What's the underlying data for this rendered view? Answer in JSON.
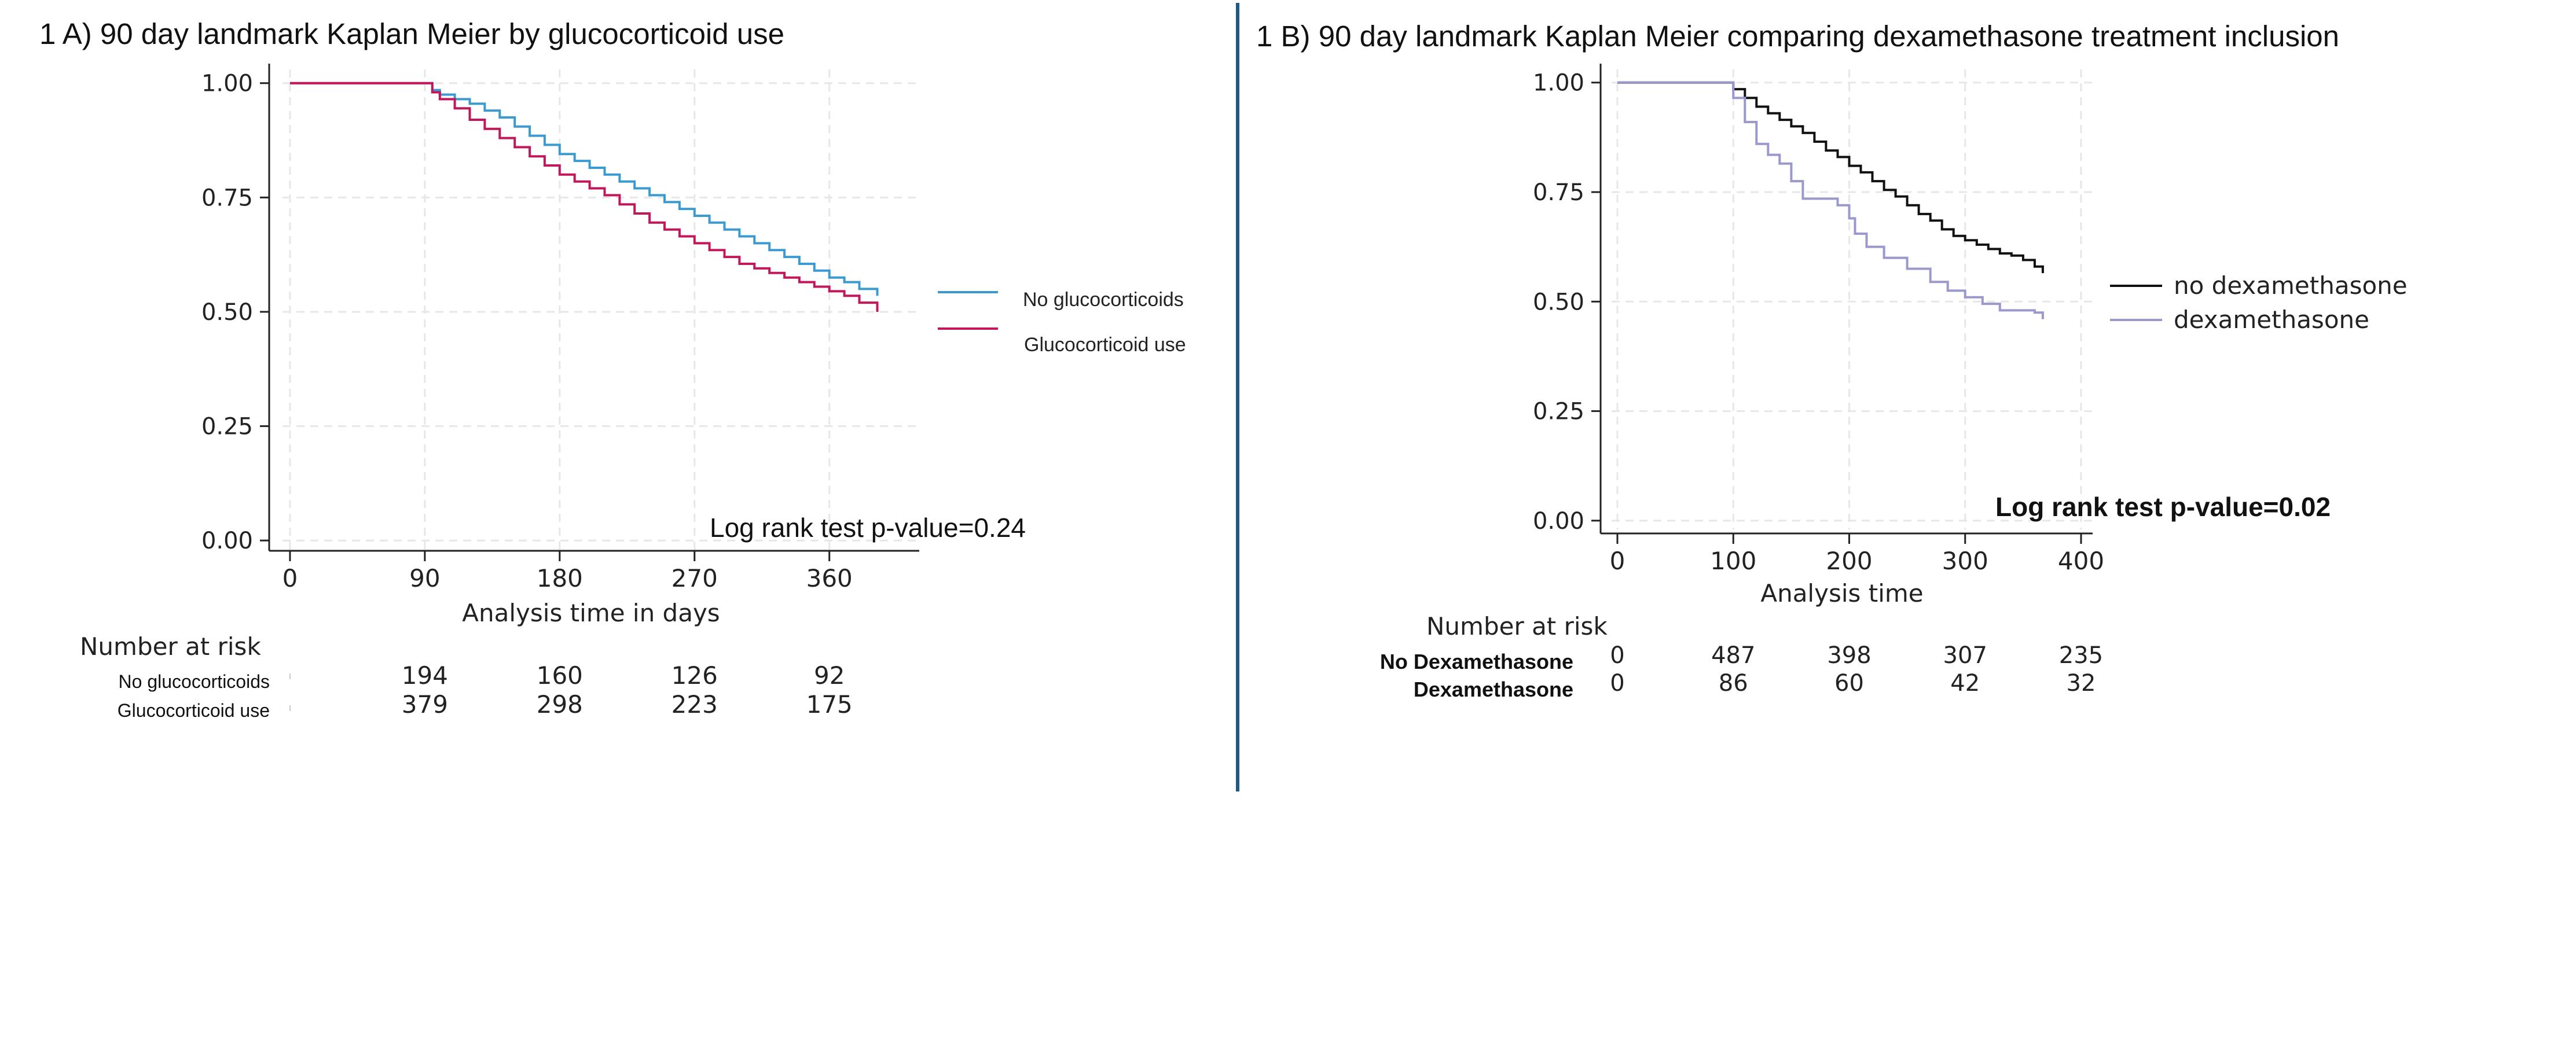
{
  "colors": {
    "divider": "#1f5a82",
    "grid": "#e7e7e7",
    "axis": "#222222",
    "A_no": "#3b9bd1",
    "A_glu": "#c2185b",
    "B_no": "#111111",
    "B_dex": "#9a98cc"
  },
  "chart_data": [
    {
      "type": "line",
      "title": "1 A) 90 day landmark Kaplan Meier by glucocorticoid use",
      "xlabel": "Analysis time in days",
      "ylabel": "",
      "xlim": [
        -5,
        420
      ],
      "ylim": [
        -0.02,
        1.03
      ],
      "xticks": [
        "0",
        "90",
        "180",
        "270",
        "360"
      ],
      "xtick_values": [
        0,
        90,
        180,
        270,
        360
      ],
      "yticks": [
        "0.00",
        "0.25",
        "0.50",
        "0.75",
        "1.00"
      ],
      "ytick_values": [
        0,
        0.25,
        0.5,
        0.75,
        1.0
      ],
      "grid": true,
      "legend_position": "right",
      "annotation": "Log rank test p-value=0.24",
      "series": [
        {
          "name": "No glucocorticoids",
          "color_key": "A_no",
          "points": [
            [
              0,
              1
            ],
            [
              90,
              1
            ],
            [
              95,
              0.985
            ],
            [
              100,
              0.975
            ],
            [
              110,
              0.965
            ],
            [
              120,
              0.955
            ],
            [
              130,
              0.94
            ],
            [
              140,
              0.925
            ],
            [
              150,
              0.905
            ],
            [
              160,
              0.885
            ],
            [
              170,
              0.865
            ],
            [
              180,
              0.845
            ],
            [
              190,
              0.83
            ],
            [
              200,
              0.815
            ],
            [
              210,
              0.8
            ],
            [
              220,
              0.785
            ],
            [
              230,
              0.77
            ],
            [
              240,
              0.755
            ],
            [
              250,
              0.74
            ],
            [
              260,
              0.725
            ],
            [
              270,
              0.71
            ],
            [
              280,
              0.695
            ],
            [
              290,
              0.68
            ],
            [
              300,
              0.665
            ],
            [
              310,
              0.65
            ],
            [
              320,
              0.635
            ],
            [
              330,
              0.62
            ],
            [
              340,
              0.605
            ],
            [
              350,
              0.59
            ],
            [
              360,
              0.575
            ],
            [
              370,
              0.565
            ],
            [
              380,
              0.55
            ],
            [
              392,
              0.535
            ]
          ]
        },
        {
          "name": "Glucocorticoid use",
          "color_key": "A_glu",
          "points": [
            [
              0,
              1
            ],
            [
              90,
              1
            ],
            [
              95,
              0.98
            ],
            [
              100,
              0.965
            ],
            [
              110,
              0.945
            ],
            [
              120,
              0.92
            ],
            [
              130,
              0.9
            ],
            [
              140,
              0.88
            ],
            [
              150,
              0.86
            ],
            [
              160,
              0.84
            ],
            [
              170,
              0.82
            ],
            [
              180,
              0.8
            ],
            [
              190,
              0.785
            ],
            [
              200,
              0.77
            ],
            [
              210,
              0.755
            ],
            [
              220,
              0.735
            ],
            [
              230,
              0.715
            ],
            [
              240,
              0.695
            ],
            [
              250,
              0.68
            ],
            [
              260,
              0.665
            ],
            [
              270,
              0.65
            ],
            [
              280,
              0.635
            ],
            [
              290,
              0.62
            ],
            [
              300,
              0.605
            ],
            [
              310,
              0.595
            ],
            [
              320,
              0.585
            ],
            [
              330,
              0.575
            ],
            [
              340,
              0.565
            ],
            [
              350,
              0.555
            ],
            [
              360,
              0.545
            ],
            [
              370,
              0.535
            ],
            [
              380,
              0.52
            ],
            [
              392,
              0.5
            ]
          ]
        }
      ],
      "risk_table": {
        "header": "Number at risk",
        "rows": [
          {
            "label": "No glucocorticoids",
            "values": [
              "194",
              "160",
              "126",
              "92"
            ]
          },
          {
            "label": "Glucocorticoid use",
            "values": [
              "379",
              "298",
              "223",
              "175"
            ]
          }
        ],
        "at_x": [
          90,
          180,
          270,
          360
        ]
      }
    },
    {
      "type": "line",
      "title": "1 B) 90 day landmark Kaplan Meier comparing dexamethasone treatment inclusion",
      "xlabel": "Analysis time",
      "ylabel": "",
      "xlim": [
        -5,
        410
      ],
      "ylim": [
        -0.02,
        1.03
      ],
      "xticks": [
        "0",
        "100",
        "200",
        "300",
        "400"
      ],
      "xtick_values": [
        0,
        100,
        200,
        300,
        400
      ],
      "yticks": [
        "0.00",
        "0.25",
        "0.50",
        "0.75",
        "1.00"
      ],
      "ytick_values": [
        0,
        0.25,
        0.5,
        0.75,
        1.0
      ],
      "grid": true,
      "legend_position": "right",
      "annotation": "Log rank test p-value=0.02",
      "series": [
        {
          "name": "no dexamethasone",
          "color_key": "B_no",
          "points": [
            [
              0,
              1
            ],
            [
              95,
              1
            ],
            [
              100,
              0.985
            ],
            [
              110,
              0.965
            ],
            [
              120,
              0.945
            ],
            [
              130,
              0.93
            ],
            [
              140,
              0.915
            ],
            [
              150,
              0.9
            ],
            [
              160,
              0.885
            ],
            [
              170,
              0.865
            ],
            [
              180,
              0.845
            ],
            [
              190,
              0.83
            ],
            [
              200,
              0.81
            ],
            [
              210,
              0.795
            ],
            [
              220,
              0.775
            ],
            [
              230,
              0.755
            ],
            [
              240,
              0.74
            ],
            [
              250,
              0.72
            ],
            [
              260,
              0.7
            ],
            [
              270,
              0.685
            ],
            [
              280,
              0.665
            ],
            [
              290,
              0.65
            ],
            [
              300,
              0.64
            ],
            [
              310,
              0.63
            ],
            [
              320,
              0.62
            ],
            [
              330,
              0.61
            ],
            [
              340,
              0.605
            ],
            [
              350,
              0.595
            ],
            [
              360,
              0.58
            ],
            [
              367,
              0.565
            ]
          ]
        },
        {
          "name": "dexamethasone",
          "color_key": "B_dex",
          "points": [
            [
              0,
              1
            ],
            [
              95,
              1
            ],
            [
              100,
              0.965
            ],
            [
              110,
              0.91
            ],
            [
              120,
              0.86
            ],
            [
              130,
              0.835
            ],
            [
              140,
              0.815
            ],
            [
              150,
              0.775
            ],
            [
              160,
              0.735
            ],
            [
              180,
              0.735
            ],
            [
              190,
              0.72
            ],
            [
              200,
              0.69
            ],
            [
              205,
              0.655
            ],
            [
              215,
              0.625
            ],
            [
              230,
              0.6
            ],
            [
              250,
              0.575
            ],
            [
              270,
              0.545
            ],
            [
              285,
              0.525
            ],
            [
              300,
              0.51
            ],
            [
              315,
              0.495
            ],
            [
              330,
              0.48
            ],
            [
              360,
              0.475
            ],
            [
              367,
              0.46
            ]
          ]
        }
      ],
      "risk_table": {
        "header": "Number at risk",
        "rows": [
          {
            "label": "No Dexamethasone",
            "values": [
              "0",
              "487",
              "398",
              "307",
              "235"
            ]
          },
          {
            "label": "Dexamethasone",
            "values": [
              "0",
              "86",
              "60",
              "42",
              "32"
            ]
          }
        ],
        "at_x": [
          0,
          100,
          200,
          300,
          400
        ]
      }
    }
  ]
}
